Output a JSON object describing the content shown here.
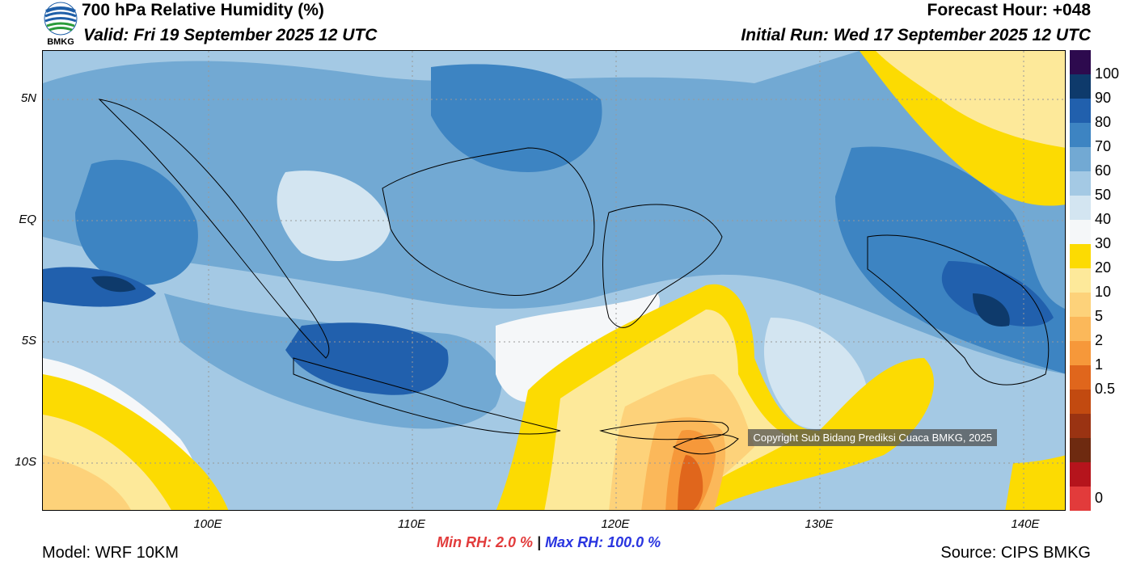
{
  "header": {
    "title": "700 hPa Relative Humidity (%)",
    "valid": "Valid: Fri 19 September 2025 12 UTC",
    "forecast_hour": "Forecast Hour: +048",
    "initial_run": "Initial Run: Wed 17 September 2025 12 UTC",
    "logo_text": "BMKG"
  },
  "map": {
    "lat_labels": [
      "5N",
      "EQ",
      "5S",
      "10S"
    ],
    "lon_labels": [
      "100E",
      "110E",
      "120E",
      "130E",
      "140E"
    ],
    "copyright": "Copyright Sub Bidang Prediksi Cuaca BMKG, 2025"
  },
  "colorbar": {
    "labels": [
      "100",
      "90",
      "80",
      "70",
      "60",
      "50",
      "40",
      "30",
      "20",
      "10",
      "5",
      "2",
      "1",
      "0.5",
      "0"
    ],
    "colors": [
      "#2d0a4e",
      "#0e3a6b",
      "#2160ad",
      "#3d84c2",
      "#72a9d3",
      "#a4c9e4",
      "#d3e5f1",
      "#f5f7f9",
      "#fcdb02",
      "#fde99a",
      "#fdd27a",
      "#fbb85a",
      "#f6983a",
      "#e0661c",
      "#c24a10",
      "#9a3312",
      "#6e2a10",
      "#b5141c",
      "#e23b3b"
    ]
  },
  "stats": {
    "min": "Min RH:   2.0 %",
    "separator": " | ",
    "max": "Max RH: 100.0 %"
  },
  "footer": {
    "model": "Model: WRF 10KM",
    "source": "Source: CIPS BMKG"
  }
}
